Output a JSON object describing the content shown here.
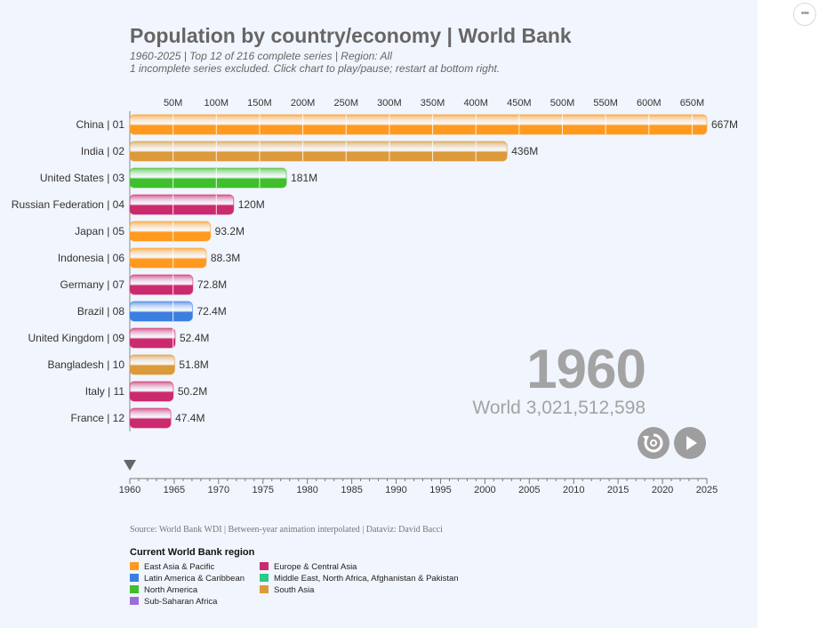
{
  "ui": {
    "more_label": "•••"
  },
  "chart_data": {
    "type": "bar",
    "title": "Population by country/economy | World Bank",
    "subtitle": "1960-2025 | Top 12 of 216 complete series | Region: All",
    "note": "1 incomplete series excluded. Click chart to play/pause; restart at bottom right.",
    "current_year": "1960",
    "world_total": "World 3,021,512,598",
    "source": "Source: World Bank WDI | Between-year animation interpolated | Dataviz: David Bacci",
    "legend_title": "Current World Bank region",
    "x_ticks": [
      50,
      100,
      150,
      200,
      250,
      300,
      350,
      400,
      450,
      500,
      550,
      600,
      650
    ],
    "x_tick_labels": [
      "50M",
      "100M",
      "150M",
      "200M",
      "250M",
      "300M",
      "350M",
      "400M",
      "450M",
      "500M",
      "550M",
      "600M",
      "650M"
    ],
    "xlim": [
      0,
      667
    ],
    "categories": [
      "China | 01",
      "India | 02",
      "United States | 03",
      "Russian Federation | 04",
      "Japan | 05",
      "Indonesia | 06",
      "Germany | 07",
      "Brazil | 08",
      "United Kingdom | 09",
      "Bangladesh | 10",
      "Italy | 11",
      "France | 12"
    ],
    "values": [
      667,
      436,
      181,
      120,
      93.2,
      88.3,
      72.8,
      72.4,
      52.4,
      51.8,
      50.2,
      47.4
    ],
    "value_labels": [
      "667M",
      "436M",
      "181M",
      "120M",
      "93.2M",
      "88.3M",
      "72.8M",
      "72.4M",
      "52.4M",
      "51.8M",
      "50.2M",
      "47.4M"
    ],
    "regions": [
      "East Asia & Pacific",
      "South Asia",
      "North America",
      "Europe & Central Asia",
      "East Asia & Pacific",
      "East Asia & Pacific",
      "Europe & Central Asia",
      "Latin America & Caribbean",
      "Europe & Central Asia",
      "South Asia",
      "Europe & Central Asia",
      "Europe & Central Asia"
    ],
    "legend": [
      {
        "name": "East Asia & Pacific",
        "color": "#ff9a1f"
      },
      {
        "name": "Europe & Central Asia",
        "color": "#cc2a6e"
      },
      {
        "name": "Latin America & Caribbean",
        "color": "#3a7fe0"
      },
      {
        "name": "Middle East, North Africa, Afghanistan & Pakistan",
        "color": "#2bc98a"
      },
      {
        "name": "North America",
        "color": "#3fbf2c"
      },
      {
        "name": "South Asia",
        "color": "#dc9a3a"
      },
      {
        "name": "Sub-Saharan Africa",
        "color": "#9b6fd6"
      }
    ],
    "timeline": {
      "start": 1960,
      "end": 2025,
      "step": 5,
      "current": 1960
    }
  }
}
